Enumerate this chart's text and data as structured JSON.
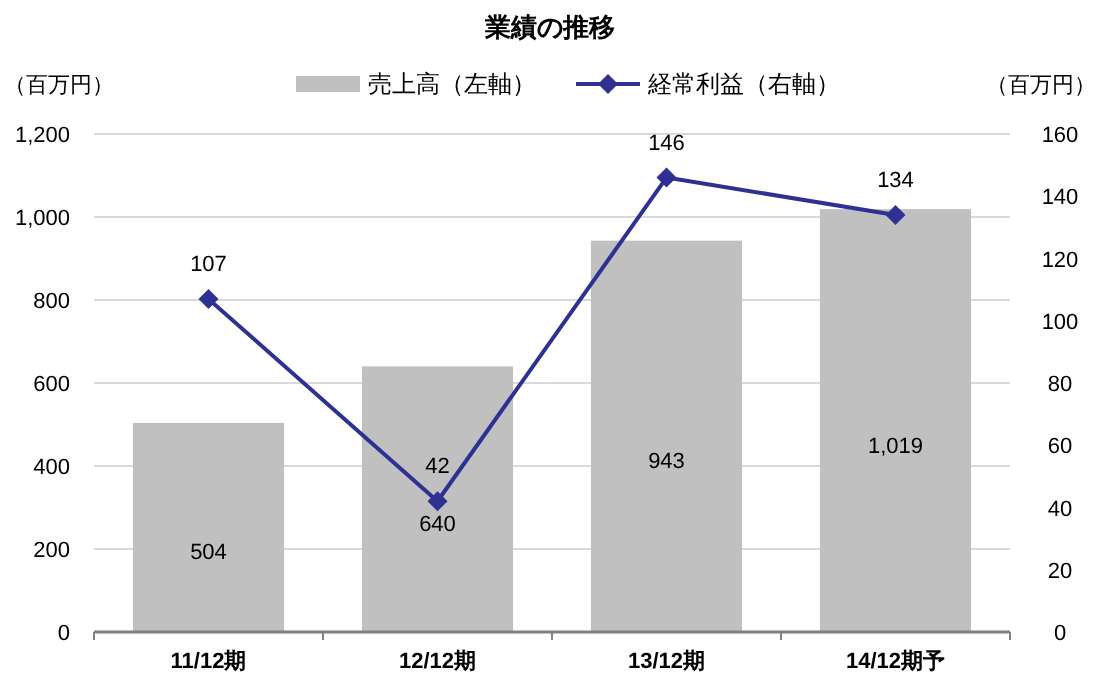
{
  "chart_data": {
    "type": "bar",
    "title": "業績の推移",
    "ylabel": "（百万円）",
    "y2label": "（百万円）",
    "categories": [
      "11/12期",
      "12/12期",
      "13/12期",
      "14/12期予"
    ],
    "series": [
      {
        "name": "売上高（左軸）",
        "color": "#c0c0c0",
        "values": [
          504,
          640,
          943,
          1019
        ],
        "value_labels": [
          "504",
          "640",
          "943",
          "1,019"
        ]
      },
      {
        "name": "経常利益（右軸）",
        "type": "line",
        "axis": "y2",
        "color": "#2e3192",
        "marker": "diamond",
        "values": [
          107,
          42,
          146,
          134
        ]
      }
    ],
    "ylim": [
      0,
      1200
    ],
    "yticks": [
      0,
      {
        "value": 200,
        "label": "200"
      },
      {
        "value": 400,
        "label": "400"
      },
      {
        "value": 600,
        "label": "600"
      },
      {
        "value": 800,
        "label": "800"
      },
      {
        "value": 1000,
        "label": "1,000"
      },
      {
        "value": 1200,
        "label": "1,200"
      }
    ],
    "y2lim": [
      0,
      160
    ],
    "y2ticks": [
      0,
      20,
      40,
      60,
      80,
      100,
      120,
      140,
      160
    ],
    "grid": "y",
    "legend": "top",
    "data_labels": true
  }
}
